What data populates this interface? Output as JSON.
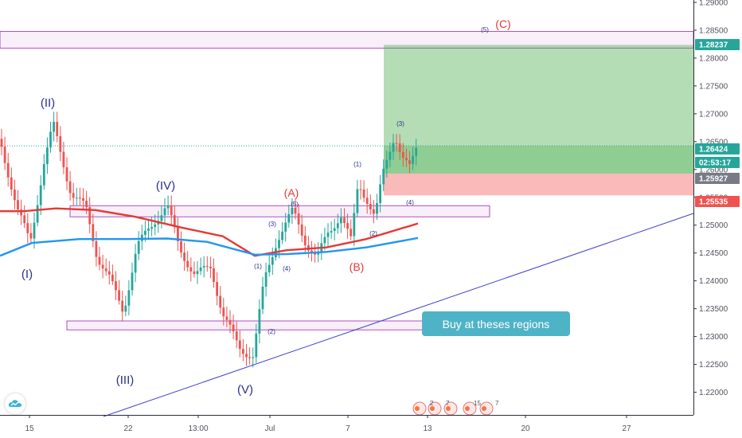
{
  "chart_data": {
    "type": "candlestick",
    "instrument_note": "",
    "price_axis": {
      "range": [
        1.2175,
        1.29
      ],
      "ticks": [
        "1.29000",
        "1.28500",
        "1.28000",
        "1.27500",
        "1.27000",
        "1.26500",
        "1.26000",
        "1.25500",
        "1.25000",
        "1.24500",
        "1.24000",
        "1.23500",
        "1.23000",
        "1.22500",
        "1.22000"
      ]
    },
    "time_axis": {
      "ticks": [
        "15",
        "22",
        "13:00",
        "Jul",
        "7",
        "13",
        "20",
        "27"
      ]
    },
    "price_tags": [
      {
        "value": "1.28237",
        "color": "#26a69a"
      },
      {
        "value": "1.26424",
        "color": "#26a69a"
      },
      {
        "value": "02:53:17",
        "color": "#26a69a"
      },
      {
        "value": "1.25927",
        "color": "#787b86"
      },
      {
        "value": "1.25535",
        "color": "#ef5350"
      }
    ],
    "wave_labels": [
      {
        "text": "(I)",
        "color": "#2a2f8f"
      },
      {
        "text": "(II)",
        "color": "#2a2f8f"
      },
      {
        "text": "(III)",
        "color": "#2a2f8f"
      },
      {
        "text": "(IV)",
        "color": "#2a2f8f"
      },
      {
        "text": "(V)",
        "color": "#2a2f8f"
      },
      {
        "text": "(A)",
        "color": "#e53935"
      },
      {
        "text": "(B)",
        "color": "#e53935"
      },
      {
        "text": "(C)",
        "color": "#e53935"
      },
      {
        "text": "(1)",
        "color": "#2a2f8f"
      },
      {
        "text": "(2)",
        "color": "#2a2f8f"
      },
      {
        "text": "(3)",
        "color": "#2a2f8f"
      },
      {
        "text": "(4)",
        "color": "#2a2f8f"
      },
      {
        "text": "(5)",
        "color": "#2a2f8f"
      }
    ],
    "zones": {
      "top_zone": [
        1.2818,
        1.2848
      ],
      "middle_zone": [
        1.2515,
        1.2535
      ],
      "bottom_zone": [
        1.2312,
        1.2328
      ],
      "profit_zone": [
        1.25927,
        1.28237
      ],
      "stop_zone": [
        1.25535,
        1.25927
      ],
      "entry": 1.26424
    },
    "moving_averages": [
      {
        "color": "#e53935"
      },
      {
        "color": "#2196f3"
      }
    ],
    "colors": {
      "up": "#26a69a",
      "down": "#ef5350",
      "trendline": "#3f3fcf"
    }
  },
  "callout": {
    "text": "Buy at theses regions"
  },
  "logo": {
    "icon": "tradingview-cloud-icon"
  },
  "events": [
    {
      "label": "2"
    },
    {
      "label": "7"
    },
    {
      "label": "15"
    },
    {
      "label": "7"
    }
  ]
}
